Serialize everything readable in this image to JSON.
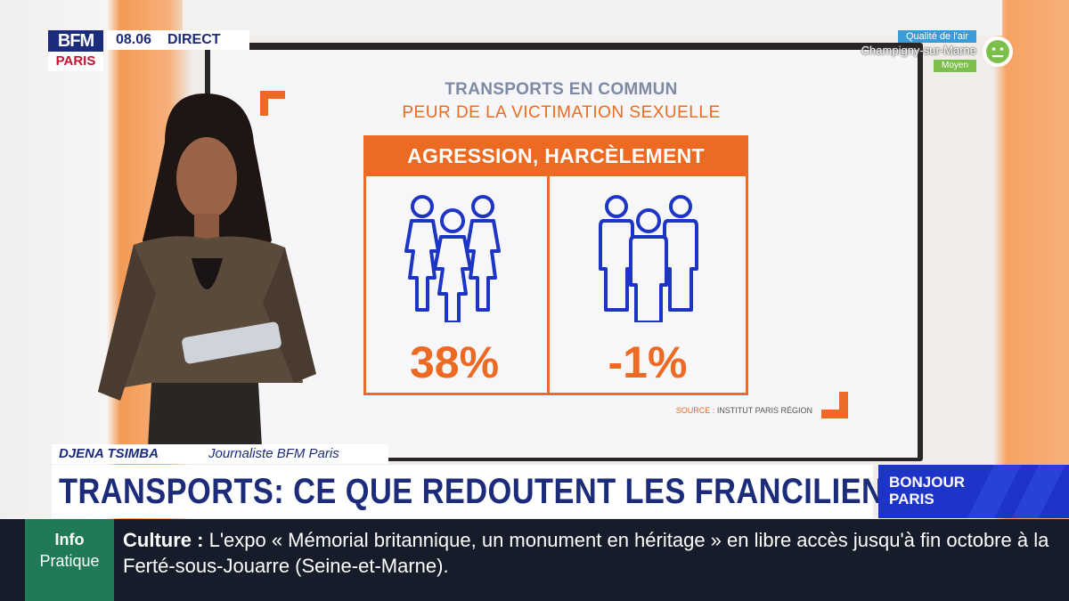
{
  "channel": {
    "logo_top": "BFM",
    "logo_bottom": "PARIS",
    "time": "08.06",
    "live": "DIRECT"
  },
  "air_quality": {
    "title": "Qualité de l'air",
    "place": "Champigny-sur-Marne",
    "level": "Moyen"
  },
  "graphic": {
    "title": "TRANSPORTS EN COMMUN",
    "subtitle": "PEUR DE LA VICTIMATION SEXUELLE",
    "header": "AGRESSION, HARCÈLEMENT",
    "women_value": "38%",
    "men_value": "-1%",
    "source_label": "SOURCE :",
    "source": "INSTITUT PARIS RÉGION",
    "accent": "#ec6a22",
    "icon_color": "#1c35c4"
  },
  "strap": {
    "name": "DJENA TSIMBA",
    "role": "Journaliste BFM Paris"
  },
  "headline": "TRANSPORTS: CE QUE REDOUTENT LES FRANCILIENNES",
  "show": {
    "line1": "BONJOUR",
    "line2": "PARIS"
  },
  "ticker": {
    "box_line1": "Info",
    "box_line2": "Pratique",
    "category": "Culture :",
    "text": "L'expo « Mémorial britannique, un monument en héritage » en libre accès jusqu'à fin octobre à la Ferté-sous-Jouarre (Seine-et-Marne)."
  },
  "colors": {
    "brand": "#1c2b7a",
    "show_blue": "#1d34c9",
    "ticker_bg": "#171c2b",
    "info_green": "#1f7a55"
  }
}
